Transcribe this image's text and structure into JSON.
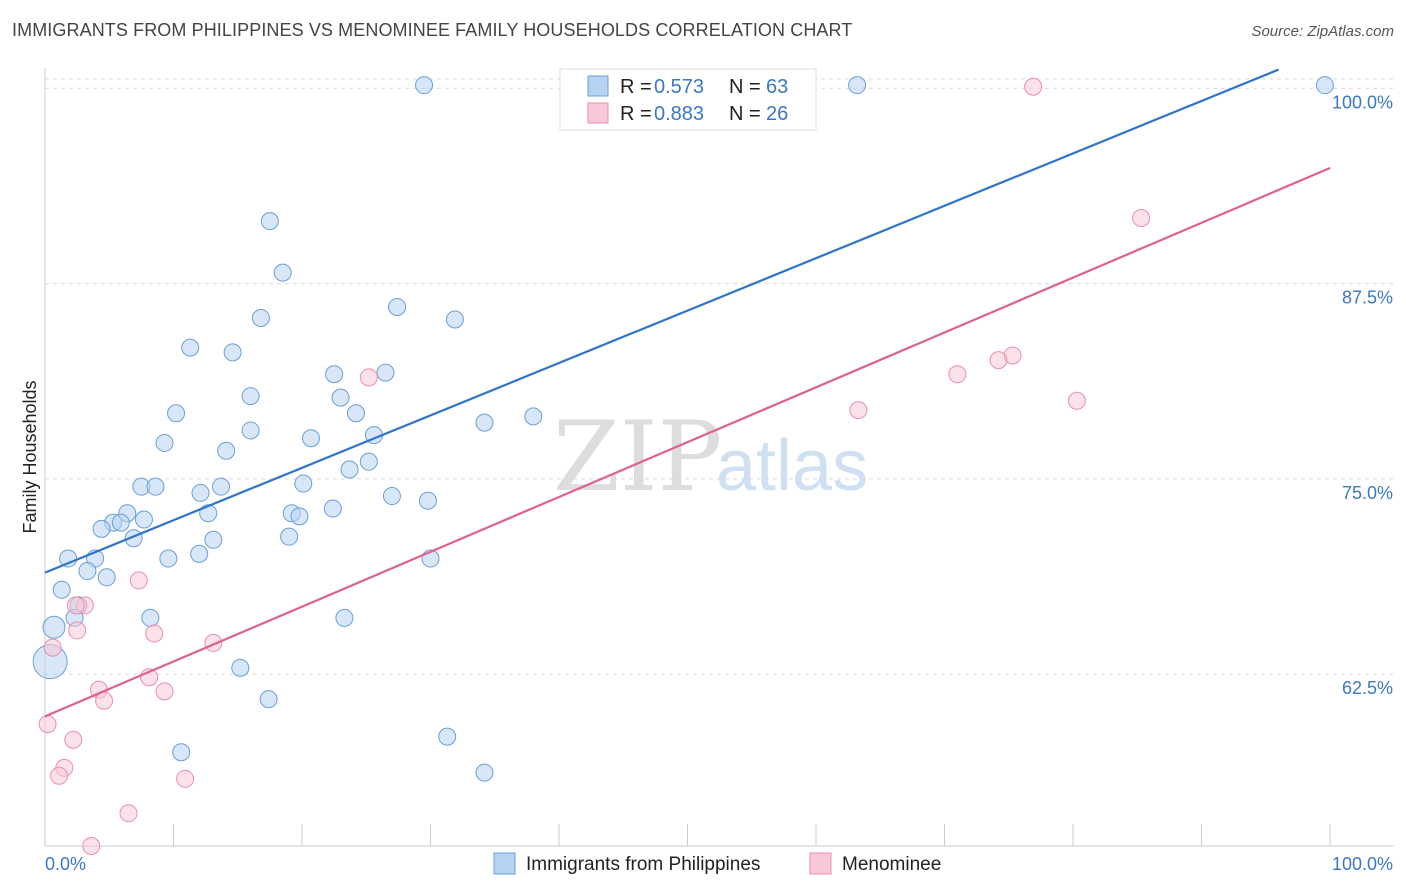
{
  "title": "IMMIGRANTS FROM PHILIPPINES VS MENOMINEE FAMILY HOUSEHOLDS CORRELATION CHART",
  "source": "Source: ZipAtlas.com",
  "watermark": {
    "part1": "ZIP",
    "part2": "atlas"
  },
  "stats": {
    "philippines": {
      "r_label": "R = ",
      "r_value": "0.573",
      "n_label": "N = ",
      "n_value": "63"
    },
    "menominee": {
      "r_label": "R = ",
      "r_value": "0.883",
      "n_label": "N = ",
      "n_value": "26"
    }
  },
  "legend": {
    "philippines": "Immigrants from Philippines",
    "menominee": "Menominee"
  },
  "colors": {
    "philippines_fill": "#b7d3f2",
    "philippines_stroke": "#6a9fd8",
    "philippines_line": "#2f74cb",
    "menominee_fill": "#f8c8d6",
    "menominee_stroke": "#ec8fab",
    "menominee_line": "#e0608c",
    "tick_text": "#3b78c4",
    "grid": "#d9d9d9"
  },
  "chart_data": {
    "type": "scatter",
    "title": "IMMIGRANTS FROM PHILIPPINES VS MENOMINEE FAMILY HOUSEHOLDS CORRELATION CHART",
    "xlabel": "",
    "ylabel": "Family Households",
    "xlim": [
      0,
      100
    ],
    "ylim": [
      51.5,
      101.3
    ],
    "x_tick_labels": [
      "0.0%",
      "100.0%"
    ],
    "y_ticks": [
      62.5,
      75.0,
      87.5,
      100.0
    ],
    "y_tick_labels": [
      "62.5%",
      "75.0%",
      "87.5%",
      "100.0%"
    ],
    "grid": true,
    "legend_position": "bottom",
    "series": [
      {
        "name": "Immigrants from Philippines",
        "trend": {
          "x": [
            0,
            96
          ],
          "y": [
            69.0,
            101.2
          ]
        },
        "points": [
          [
            29.5,
            100.2
          ],
          [
            63.2,
            100.2
          ],
          [
            99.6,
            100.2
          ],
          [
            17.5,
            91.5
          ],
          [
            18.5,
            88.2
          ],
          [
            16.8,
            85.3
          ],
          [
            27.4,
            86.0
          ],
          [
            31.9,
            85.2
          ],
          [
            11.3,
            83.4
          ],
          [
            14.6,
            83.1
          ],
          [
            22.5,
            81.7
          ],
          [
            16.0,
            80.3
          ],
          [
            23.0,
            80.2
          ],
          [
            10.2,
            79.2
          ],
          [
            24.2,
            79.2
          ],
          [
            34.2,
            78.6
          ],
          [
            16.0,
            78.1
          ],
          [
            20.7,
            77.6
          ],
          [
            25.6,
            77.8
          ],
          [
            9.3,
            77.3
          ],
          [
            14.1,
            76.8
          ],
          [
            25.2,
            76.1
          ],
          [
            23.7,
            75.6
          ],
          [
            7.5,
            74.5
          ],
          [
            8.6,
            74.5
          ],
          [
            12.1,
            74.1
          ],
          [
            13.7,
            74.5
          ],
          [
            20.1,
            74.7
          ],
          [
            27.0,
            73.9
          ],
          [
            29.8,
            73.6
          ],
          [
            22.4,
            73.1
          ],
          [
            6.4,
            72.8
          ],
          [
            12.7,
            72.8
          ],
          [
            19.2,
            72.8
          ],
          [
            19.8,
            72.6
          ],
          [
            5.3,
            72.2
          ],
          [
            7.7,
            72.4
          ],
          [
            5.9,
            72.2
          ],
          [
            4.4,
            71.8
          ],
          [
            6.9,
            71.2
          ],
          [
            13.1,
            71.1
          ],
          [
            19.0,
            71.3
          ],
          [
            12.0,
            70.2
          ],
          [
            9.6,
            69.9
          ],
          [
            1.8,
            69.9
          ],
          [
            3.9,
            69.9
          ],
          [
            30.0,
            69.9
          ],
          [
            3.3,
            69.1
          ],
          [
            4.8,
            68.7
          ],
          [
            1.3,
            67.9
          ],
          [
            2.6,
            66.9
          ],
          [
            2.3,
            66.1
          ],
          [
            8.2,
            66.1
          ],
          [
            23.3,
            66.1
          ],
          [
            0.7,
            65.5
          ],
          [
            0.4,
            63.3
          ],
          [
            15.2,
            62.9
          ],
          [
            17.4,
            60.9
          ],
          [
            31.3,
            58.5
          ],
          [
            10.6,
            57.5
          ],
          [
            34.2,
            56.2
          ],
          [
            26.5,
            81.8
          ],
          [
            38.0,
            79.0
          ]
        ]
      },
      {
        "name": "Menominee",
        "trend": {
          "x": [
            0,
            100
          ],
          "y": [
            59.8,
            94.9
          ]
        },
        "points": [
          [
            76.9,
            100.1
          ],
          [
            85.3,
            91.7
          ],
          [
            75.3,
            82.9
          ],
          [
            74.2,
            82.6
          ],
          [
            71.0,
            81.7
          ],
          [
            80.3,
            80.0
          ],
          [
            63.3,
            79.4
          ],
          [
            25.2,
            81.5
          ],
          [
            7.3,
            68.5
          ],
          [
            3.1,
            66.9
          ],
          [
            2.4,
            66.9
          ],
          [
            2.5,
            65.3
          ],
          [
            8.5,
            65.1
          ],
          [
            13.1,
            64.5
          ],
          [
            0.6,
            64.2
          ],
          [
            8.1,
            62.3
          ],
          [
            9.3,
            61.4
          ],
          [
            4.2,
            61.5
          ],
          [
            4.6,
            60.8
          ],
          [
            0.2,
            59.3
          ],
          [
            2.2,
            58.3
          ],
          [
            1.5,
            56.5
          ],
          [
            1.1,
            56.0
          ],
          [
            10.9,
            55.8
          ],
          [
            6.5,
            53.6
          ],
          [
            3.6,
            51.5
          ]
        ]
      }
    ]
  }
}
